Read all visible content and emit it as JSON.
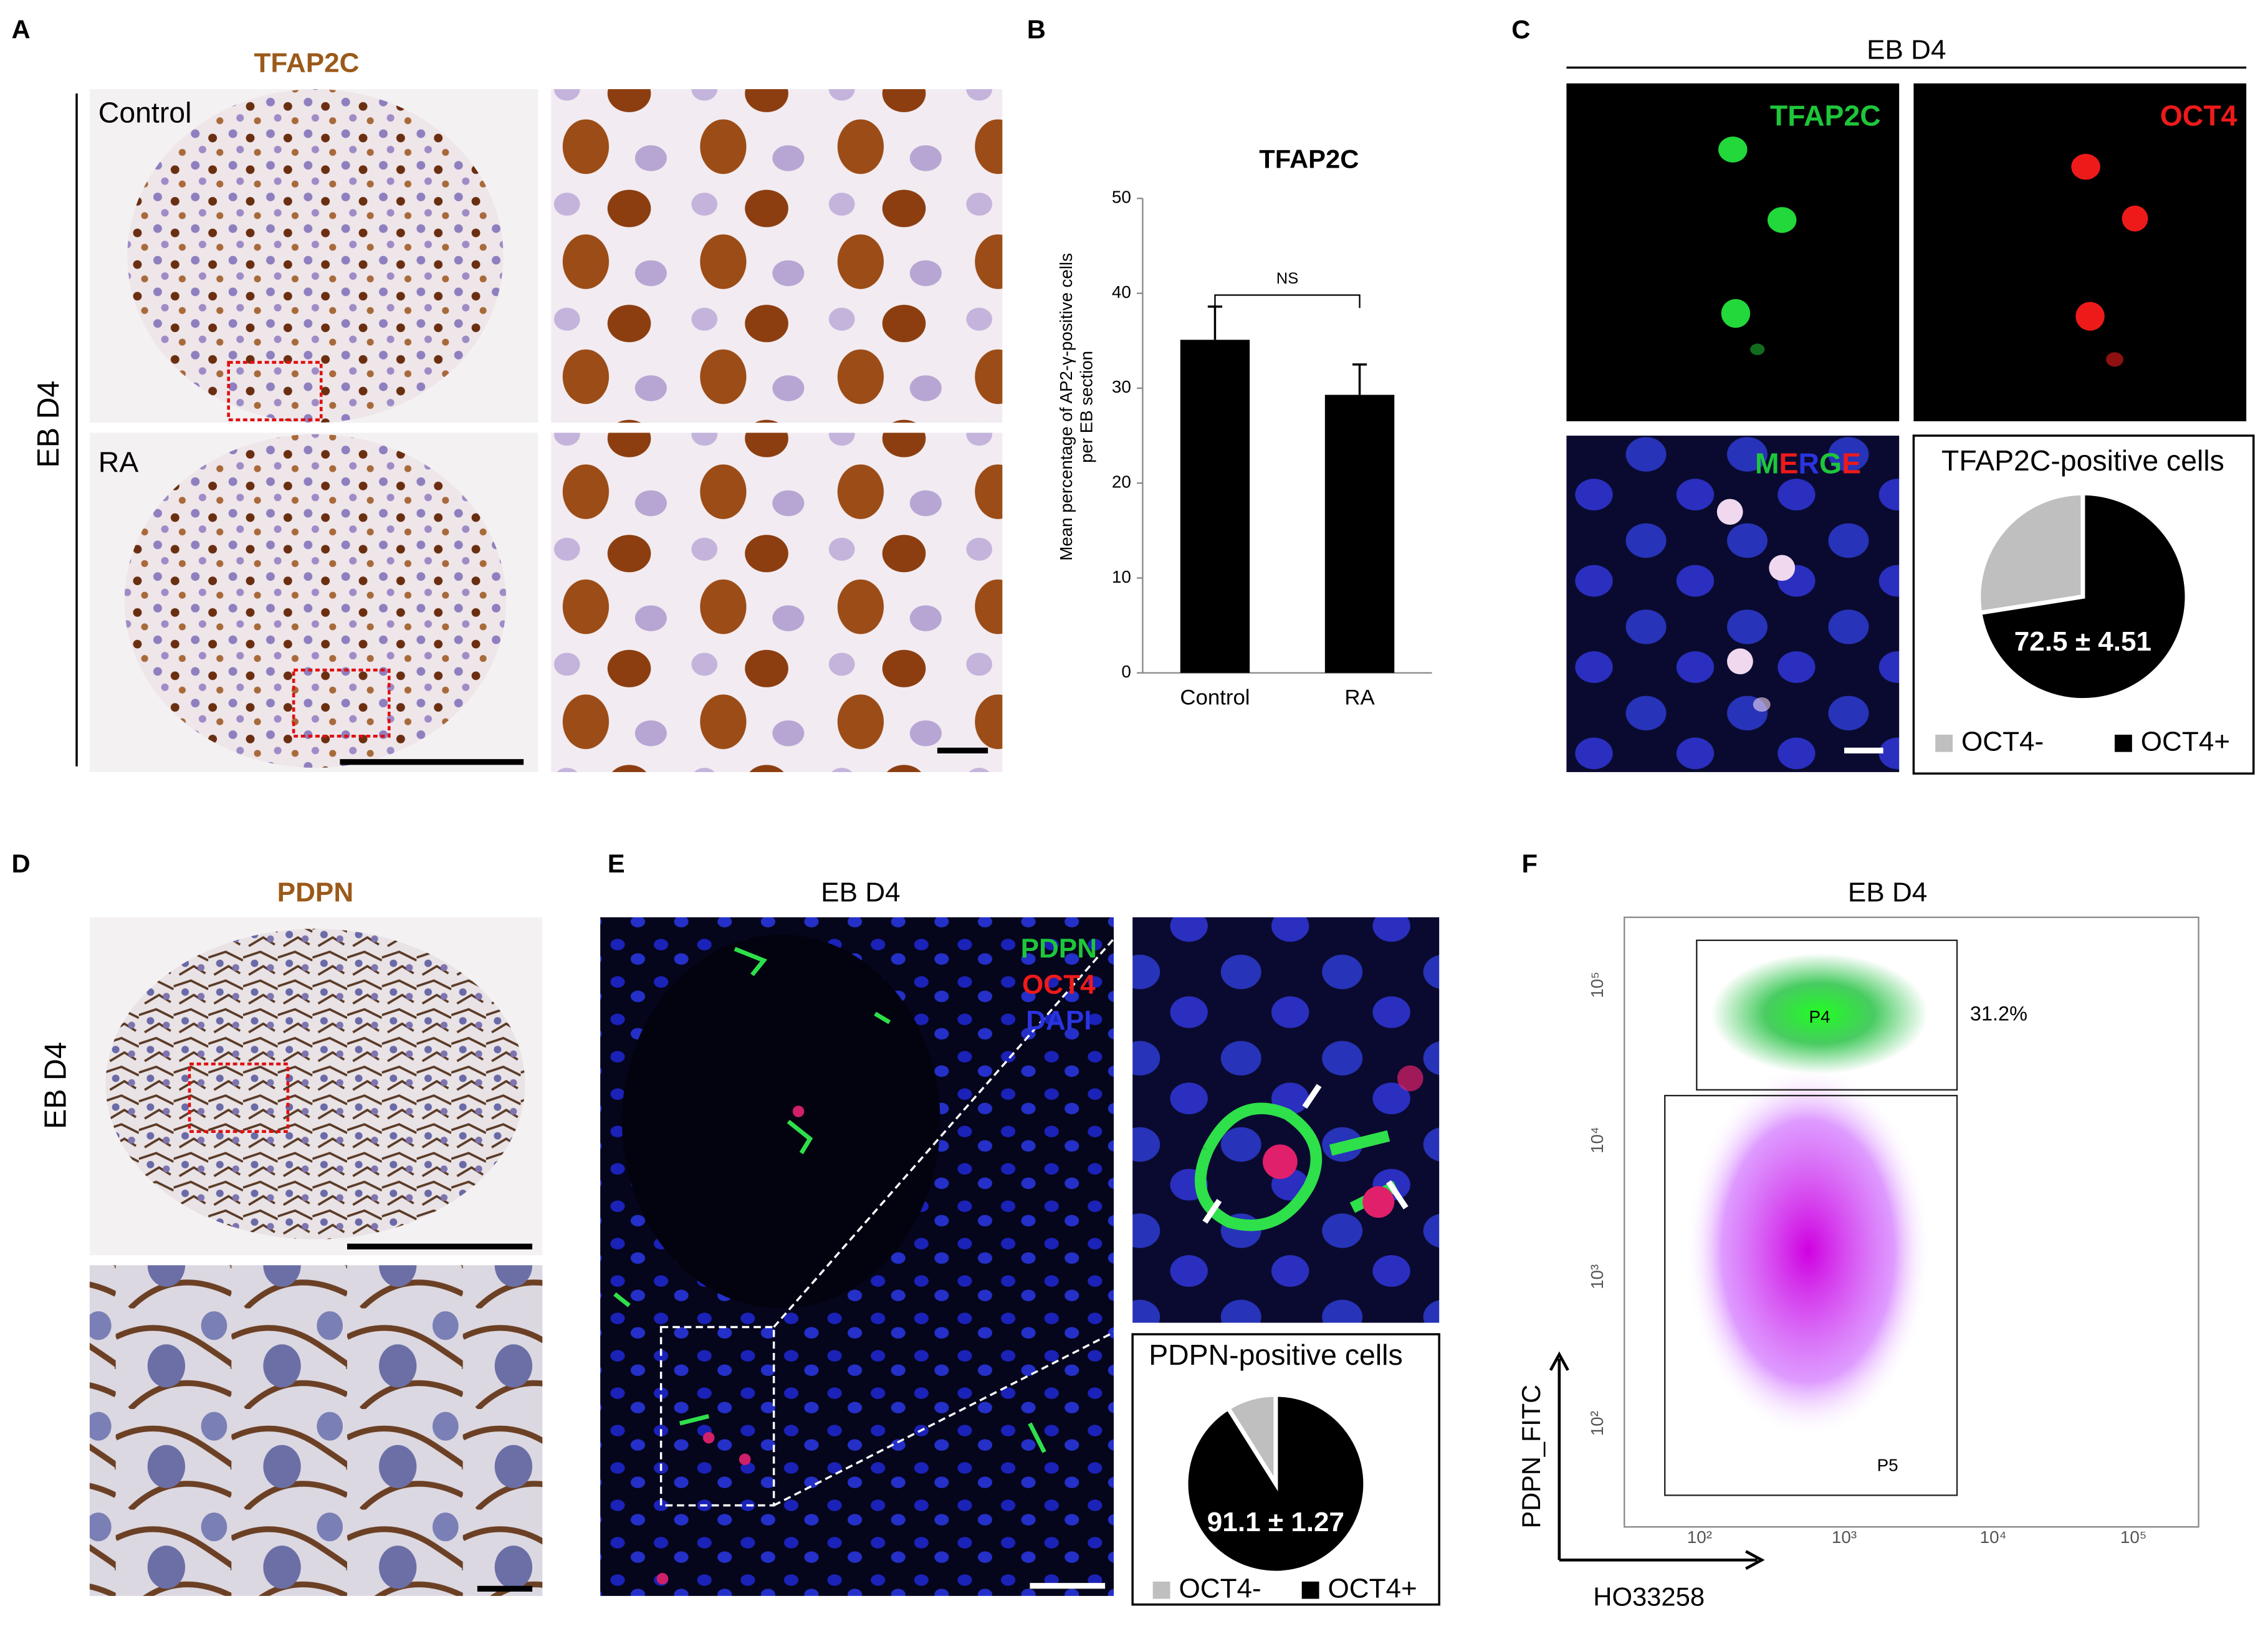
{
  "panels": {
    "A": {
      "label": "A",
      "title": "TFAP2C",
      "row_title": "EB D4",
      "rows": [
        "Control",
        "RA"
      ]
    },
    "B": {
      "label": "B"
    },
    "C": {
      "label": "C",
      "title": "EB D4",
      "channels": [
        "TFAP2C",
        "OCT4"
      ],
      "merge": [
        "M",
        "E",
        "R",
        "G",
        "E"
      ]
    },
    "D": {
      "label": "D",
      "title": "PDPN",
      "row_title": "EB D4"
    },
    "E": {
      "label": "E",
      "title": "EB D4",
      "channels": [
        "PDPN",
        "OCT4",
        "DAPI"
      ]
    },
    "F": {
      "label": "F",
      "title": "EB D4",
      "gates": [
        "P4",
        "P5"
      ],
      "gate_percent": "31.2%",
      "xlabel": "HO33258",
      "ylabel": "PDPN_FITC",
      "ticks": [
        "10²",
        "10³",
        "10⁴",
        "10⁵"
      ]
    }
  },
  "chart_data": [
    {
      "type": "bar",
      "title": "TFAP2C",
      "ylabel": [
        "Mean percentage of AP2-γ-positive cells",
        "per EB section"
      ],
      "categories": [
        "Control",
        "RA"
      ],
      "values": [
        35.1,
        29.3
      ],
      "errors": [
        3.5,
        3.2
      ],
      "color": "#000000",
      "ylim": [
        0,
        50
      ],
      "yticks": [
        0,
        10,
        20,
        30,
        40,
        50
      ],
      "annotation": "NS"
    },
    {
      "type": "pie",
      "title": "TFAP2C-positive cells",
      "categories": [
        "OCT4-",
        "OCT4+"
      ],
      "values": [
        27.5,
        72.5
      ],
      "value_labels": [
        null,
        "72.5 ± 4.51"
      ],
      "colors": [
        "#bfbfbf",
        "#000000"
      ]
    },
    {
      "type": "pie",
      "title": "PDPN-positive cells",
      "categories": [
        "OCT4-",
        "OCT4+"
      ],
      "values": [
        8.9,
        91.1
      ],
      "value_labels": [
        null,
        "91.1 ± 1.27"
      ],
      "colors": [
        "#bfbfbf",
        "#000000"
      ]
    }
  ]
}
